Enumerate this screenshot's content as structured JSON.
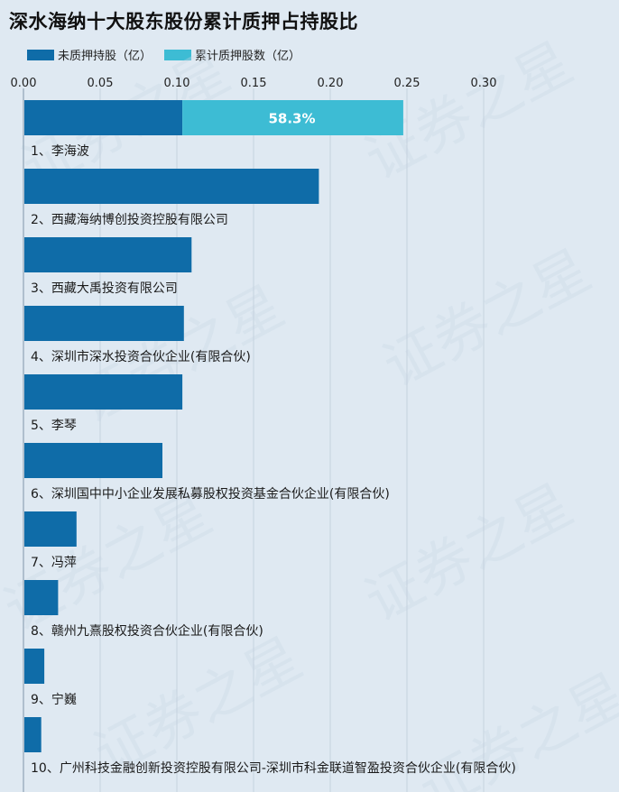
{
  "watermark": "证券之星",
  "chart_data": {
    "type": "bar",
    "orientation": "horizontal",
    "stacked": true,
    "title": "深水海纳十大股东股份累计质押占持股比",
    "xlim": [
      0,
      0.3
    ],
    "xticks": [
      "0.00",
      "0.05",
      "0.10",
      "0.15",
      "0.20",
      "0.25",
      "0.30"
    ],
    "grid": true,
    "legend_position": "top-left",
    "categories": [
      "1、李海波",
      "2、西藏海纳博创投资控股有限公司",
      "3、西藏大禹投资有限公司",
      "4、深圳市深水投资合伙企业(有限合伙)",
      "5、李琴",
      "6、深圳国中中小企业发展私募股权投资基金合伙企业(有限合伙)",
      "7、冯萍",
      "8、赣州九熹股权投资合伙企业(有限合伙)",
      "9、宁巍",
      "10、广州科技金融创新投资控股有限公司-深圳市科金联道智盈投资合伙企业(有限合伙)"
    ],
    "series": [
      {
        "name": "未质押持股（亿）",
        "color": "#0f6ca8",
        "values": [
          0.103,
          0.192,
          0.109,
          0.104,
          0.103,
          0.09,
          0.034,
          0.022,
          0.013,
          0.011
        ]
      },
      {
        "name": "累计质押股数（亿）",
        "color": "#3dbcd4",
        "values": [
          0.144,
          0,
          0,
          0,
          0,
          0,
          0,
          0,
          0,
          0
        ]
      }
    ],
    "annotations": [
      {
        "category_index": 0,
        "text": "58.3%"
      }
    ]
  }
}
